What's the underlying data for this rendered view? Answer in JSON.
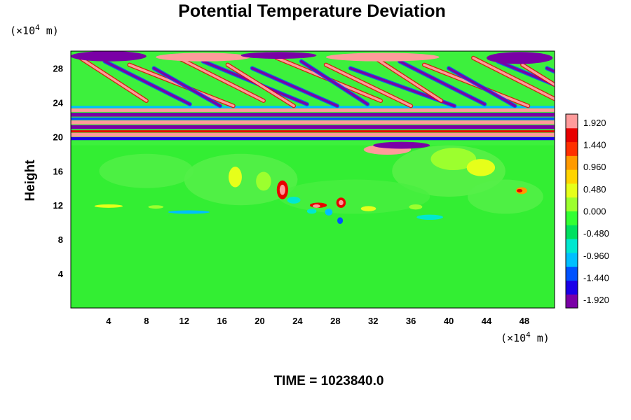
{
  "chart_data": {
    "type": "heatmap",
    "title": "Potential Temperature Deviation",
    "ylabel": "Height",
    "xlabel": "",
    "x_unit": {
      "prefix": "(×10",
      "exp": "4",
      "suffix": " m)"
    },
    "y_unit": {
      "prefix": "(×10",
      "exp": "4",
      "suffix": " m)"
    },
    "xlim": [
      0,
      51.2
    ],
    "ylim": [
      0,
      30
    ],
    "x_ticks": [
      4,
      8,
      12,
      16,
      20,
      24,
      28,
      32,
      36,
      40,
      44,
      48
    ],
    "y_ticks": [
      4,
      8,
      12,
      16,
      20,
      24,
      28
    ],
    "colorbar": {
      "range": [
        -2.1,
        2.1
      ],
      "labels": [
        "1.920",
        "1.440",
        "0.960",
        "0.480",
        "0.000",
        "-0.480",
        "-0.960",
        "-1.440",
        "-1.920"
      ],
      "label_values": [
        1.92,
        1.44,
        0.96,
        0.48,
        0.0,
        -0.48,
        -0.96,
        -1.44,
        -1.92
      ],
      "colors_low_to_high": [
        "#7a00a6",
        "#1a00e8",
        "#0052ff",
        "#00bfff",
        "#00e8d0",
        "#00e060",
        "#33ff33",
        "#9cff2e",
        "#e6ff1a",
        "#ffd400",
        "#ff9a00",
        "#ff3000",
        "#e80000",
        "#ff9b9b"
      ]
    },
    "field_description": "Background near 0 (green) from 0 to ~19; sparse small warm/cold anomalies near 10-14; strong alternating banded and tilted wave structures between ~19 and 30 with amplitudes beyond ±1.92",
    "time_label": "TIME = 1023840.0"
  }
}
